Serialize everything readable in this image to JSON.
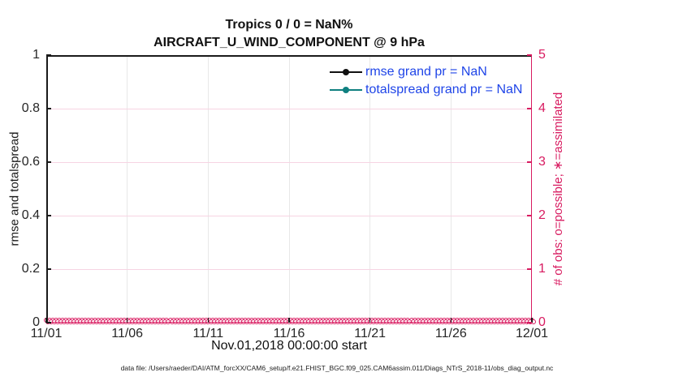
{
  "title": {
    "line1": "Tropics 0 / 0 = NaN%",
    "line2": "AIRCRAFT_U_WIND_COMPONENT @ 9 hPa"
  },
  "axes": {
    "xlabel": "Nov.01,2018 00:00:00 start",
    "ylabel_left": "rmse and totalspread",
    "ylabel_right": "# of obs: o=possible; ∗=assimilated",
    "x_ticks": [
      "11/01",
      "11/06",
      "11/11",
      "11/16",
      "11/21",
      "11/26",
      "12/01"
    ],
    "y_left_ticks": [
      "0",
      "0.2",
      "0.4",
      "0.6",
      "0.8",
      "1"
    ],
    "y_right_ticks": [
      "0",
      "1",
      "2",
      "3",
      "4",
      "5"
    ]
  },
  "legend": [
    {
      "label": "rmse grand pr = NaN",
      "color": "#111111"
    },
    {
      "label": "totalspread grand pr = NaN",
      "color": "#0f8080"
    }
  ],
  "footer": "data file: /Users/raeder/DAI/ATM_forcXX/CAM6_setup/f.e21.FHIST_BGC.f09_025.CAM6assim.011/Diags_NTrS_2018-11/obs_diag_output.nc",
  "colors": {
    "accent_pink": "#d81b60",
    "grid_pink": "#f7d4e3",
    "grid_gray": "#e8e8e8",
    "axis_dark": "#1a1a1a",
    "tick_text": "#262626",
    "legend_text_blue": "#1f45e8"
  },
  "chart_data": {
    "type": "line",
    "title": "Tropics 0 / 0 = NaN% — AIRCRAFT_U_WIND_COMPONENT @ 9 hPa",
    "xlabel": "Nov.01,2018 00:00:00 start",
    "x_tick_labels": [
      "11/01",
      "11/06",
      "11/11",
      "11/16",
      "11/21",
      "11/26",
      "12/01"
    ],
    "x_range_days": [
      0,
      30
    ],
    "y_left": {
      "label": "rmse and totalspread",
      "range": [
        0,
        1
      ],
      "ticks": [
        0,
        0.2,
        0.4,
        0.6,
        0.8,
        1
      ]
    },
    "y_right": {
      "label": "# of obs: o=possible; ∗=assimilated",
      "range": [
        0,
        5
      ],
      "ticks": [
        0,
        1,
        2,
        3,
        4,
        5
      ]
    },
    "grid": true,
    "legend_position": "upper right inside, no box",
    "series": [
      {
        "name": "rmse",
        "grand_pr": "NaN",
        "color": "#111111",
        "marker": "point",
        "values": null,
        "note": "no visible curve (all NaN)"
      },
      {
        "name": "totalspread",
        "grand_pr": "NaN",
        "color": "#0f8080",
        "marker": "point",
        "values": null,
        "note": "no visible curve (all NaN)"
      },
      {
        "name": "obs_possible",
        "axis": "right",
        "marker": "o",
        "color": "#d81b60",
        "constant_value": 0,
        "n_times": 150
      },
      {
        "name": "obs_assimilated",
        "axis": "right",
        "marker": "∗",
        "color": "#d81b60",
        "constant_value": 0,
        "n_times": 150
      }
    ]
  }
}
